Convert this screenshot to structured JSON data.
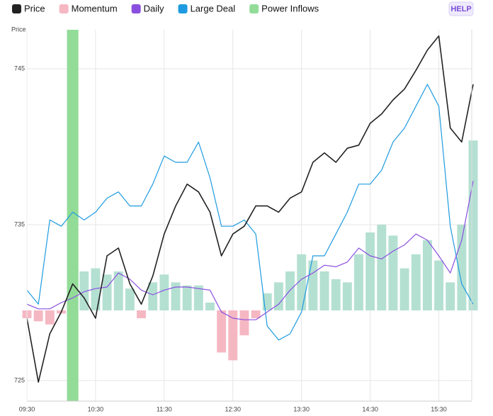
{
  "chart_data": {
    "type": "line",
    "y_axis_label": "Price",
    "help_button": "HELP",
    "x": [
      "09:30",
      "09:40",
      "09:50",
      "10:00",
      "10:10",
      "10:20",
      "10:30",
      "10:40",
      "10:50",
      "11:00",
      "11:10",
      "11:20",
      "11:30",
      "11:40",
      "11:50",
      "12:00",
      "12:10",
      "12:20",
      "12:30",
      "12:40",
      "12:50",
      "13:00",
      "13:10",
      "13:20",
      "13:30",
      "13:40",
      "13:50",
      "14:00",
      "14:10",
      "14:20",
      "14:30",
      "14:40",
      "14:50",
      "15:00",
      "15:10",
      "15:20",
      "15:30",
      "15:40",
      "15:50",
      "16:00"
    ],
    "xlim": [
      "09:30",
      "16:00"
    ],
    "xticks": [
      "09:30",
      "10:30",
      "11:30",
      "12:30",
      "13:30",
      "14:30",
      "15:30"
    ],
    "ylim": [
      723.5,
      747.5
    ],
    "yticks": [
      725,
      735,
      745
    ],
    "y2lim": [
      -6,
      18
    ],
    "grid": true,
    "series": [
      {
        "name": "Price",
        "kind": "line",
        "color": "#222222",
        "width": 1.6,
        "values": [
          729.0,
          724.9,
          728.0,
          729.4,
          731.2,
          730.3,
          729.0,
          733.0,
          733.5,
          731.2,
          729.9,
          731.7,
          734.4,
          736.2,
          737.6,
          737.1,
          735.8,
          733.0,
          734.4,
          734.9,
          736.2,
          736.2,
          735.8,
          736.7,
          737.1,
          739.0,
          739.6,
          739.0,
          739.9,
          740.1,
          741.5,
          742.1,
          743.0,
          743.7,
          744.9,
          746.2,
          747.1,
          741.2,
          740.3,
          744.0
        ]
      },
      {
        "name": "Momentum",
        "kind": "bar",
        "axis": "y2",
        "color": "#f5b8c3",
        "positive_color": "#b4e0d2",
        "values": [
          -0.5,
          -0.7,
          -0.9,
          -0.2,
          1.8,
          2.5,
          2.7,
          2.3,
          2.5,
          1.4,
          -0.5,
          1.8,
          2.3,
          1.8,
          1.6,
          1.6,
          0.5,
          -2.7,
          -3.2,
          -1.6,
          -0.5,
          1.1,
          1.8,
          2.5,
          3.6,
          3.2,
          2.5,
          2.0,
          1.8,
          3.6,
          5.0,
          5.5,
          4.8,
          2.7,
          3.6,
          4.5,
          3.2,
          1.8,
          5.5,
          10.9
        ]
      },
      {
        "name": "Daily",
        "kind": "line",
        "color": "#8b4fe0",
        "width": 1.2,
        "values": [
          729.9,
          729.6,
          729.6,
          730.0,
          730.3,
          730.7,
          730.9,
          731.0,
          731.9,
          731.5,
          730.8,
          730.5,
          730.8,
          731.0,
          731.0,
          730.9,
          730.8,
          729.4,
          729.0,
          728.9,
          728.9,
          729.4,
          729.9,
          730.8,
          731.5,
          731.9,
          732.4,
          732.3,
          732.6,
          733.5,
          733.0,
          732.8,
          733.3,
          733.7,
          734.4,
          734.0,
          733.0,
          731.9,
          734.0,
          737.8
        ]
      },
      {
        "name": "Large Deal",
        "kind": "line",
        "color": "#1e9be0",
        "width": 1.2,
        "values": [
          730.8,
          729.9,
          735.3,
          734.9,
          735.8,
          735.3,
          735.8,
          736.7,
          737.1,
          736.2,
          736.2,
          737.6,
          739.4,
          739.0,
          739.0,
          740.3,
          738.0,
          734.9,
          734.9,
          735.3,
          734.4,
          728.5,
          727.6,
          728.0,
          729.4,
          733.0,
          733.0,
          734.4,
          735.8,
          737.6,
          737.6,
          738.5,
          740.3,
          741.2,
          742.6,
          744.0,
          742.6,
          734.9,
          731.2,
          729.9
        ]
      }
    ],
    "highlights": {
      "name": "Power Inflows",
      "color": "#92dc98",
      "ranges": [
        [
          "10:05",
          "10:15"
        ]
      ]
    }
  }
}
